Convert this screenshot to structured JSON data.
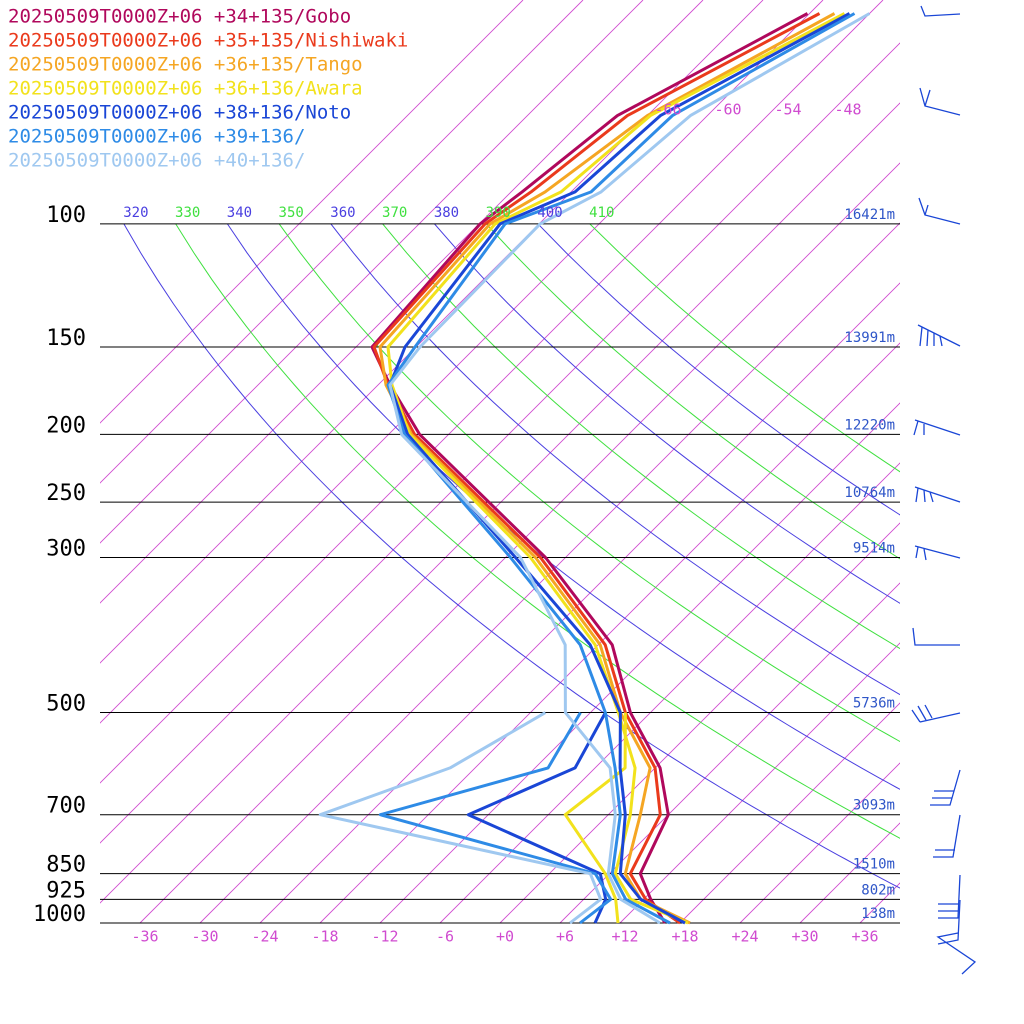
{
  "chart_data": {
    "type": "skewt",
    "levels": [
      50,
      70,
      90,
      100,
      150,
      170,
      200,
      300,
      400,
      500,
      600,
      700,
      850,
      925,
      1000
    ],
    "dewpoint_levels": [
      500,
      600,
      700,
      850,
      925,
      1000
    ],
    "series": [
      {
        "name": "20250509T0000Z+06 +34+135/Gobo",
        "color": "#b0085c",
        "values": [
          -60.2,
          -69,
          -70.9,
          -71.9,
          -70.4,
          -64.8,
          -56.9,
          -32,
          -16.6,
          -8,
          0.5,
          6,
          9.1,
          12.7,
          16.5
        ]
      },
      {
        "name": "20250509T0000Z+06 +35+135/Nishiwaki",
        "color": "#ea3a1c",
        "values": [
          -59,
          -68,
          -70,
          -71.4,
          -70.2,
          -65,
          -57.4,
          -32.5,
          -17.3,
          -8.5,
          0,
          5.2,
          8.1,
          12.2,
          18
        ]
      },
      {
        "name": "20250509T0000Z+06 +36+135/Tango",
        "color": "#f5a623",
        "values": [
          -57.5,
          -66,
          -68.6,
          -70.9,
          -69.6,
          -65.2,
          -57.7,
          -33,
          -17.8,
          -9,
          -0.5,
          3.2,
          7.6,
          11.7,
          19
        ]
      },
      {
        "name": "20250509T0000Z+06 +36+136/Awara",
        "color": "#f2e21c",
        "values": [
          -56.5,
          -65.7,
          -67,
          -70.4,
          -68.8,
          -64.6,
          -57.9,
          -33.5,
          -18.3,
          -9.2,
          -2,
          2.2,
          6.6,
          10.7,
          18.8
        ],
        "dewpoint": [
          -8.5,
          -3,
          -4.3,
          5.6,
          9.2,
          11.8
        ]
      },
      {
        "name": "20250509T0000Z+06 +38+136/Noto",
        "color": "#1a46d6",
        "values": [
          -56,
          -64.7,
          -65.6,
          -69.9,
          -67.1,
          -64.8,
          -58.1,
          -35,
          -18.8,
          -9,
          -3.5,
          1.7,
          7.1,
          11.7,
          18.5
        ],
        "dewpoint": [
          -10.5,
          -8,
          -14,
          5.1,
          8.2,
          9.5
        ]
      },
      {
        "name": "20250509T0000Z+06 +39+136/",
        "color": "#2e8be6",
        "values": [
          -55.5,
          -63.5,
          -64,
          -69.4,
          -66.1,
          -65,
          -58.4,
          -35.5,
          -19.8,
          -10.5,
          -4,
          1.2,
          6.3,
          10.2,
          17
        ],
        "dewpoint": [
          -13,
          -10.7,
          -22.8,
          4.6,
          8.7,
          8
        ]
      },
      {
        "name": "20250509T0000Z+06 +40+136/",
        "color": "#9fc8f0",
        "values": [
          -54,
          -61.7,
          -63,
          -65.9,
          -65.6,
          -64.8,
          -58.7,
          -34.5,
          -21.3,
          -14.5,
          -4.5,
          0.7,
          5.9,
          9.7,
          16
        ],
        "dewpoint": [
          -16.5,
          -20.5,
          -28.8,
          4.1,
          7.7,
          7
        ]
      }
    ],
    "yticks": [
      100,
      150,
      200,
      250,
      300,
      500,
      700,
      850,
      925,
      1000
    ],
    "height_labels": [
      "16421m",
      "13991m",
      "12220m",
      "10764m",
      "9514m",
      "5736m",
      "3093m",
      "1510m",
      "802m",
      "138m"
    ],
    "xticks": [
      -36,
      -30,
      -24,
      -18,
      -12,
      -6,
      {
        "value": 0,
        "label": "+0"
      },
      {
        "value": 6,
        "label": "+6"
      },
      {
        "value": 12,
        "label": "+12"
      },
      {
        "value": 18,
        "label": "+18"
      },
      {
        "value": 24,
        "label": "+24"
      },
      {
        "value": 30,
        "label": "+30"
      },
      {
        "value": 36,
        "label": "+36"
      }
    ],
    "isotherm_labels": [
      -66,
      -60,
      -54,
      -48
    ],
    "theta_labels": [
      320,
      330,
      340,
      350,
      360,
      370,
      380,
      390,
      400,
      410
    ],
    "isotherm_color": "#d04bd0",
    "theta_colors": [
      "#4a3fe0",
      "#3fe03f"
    ]
  }
}
